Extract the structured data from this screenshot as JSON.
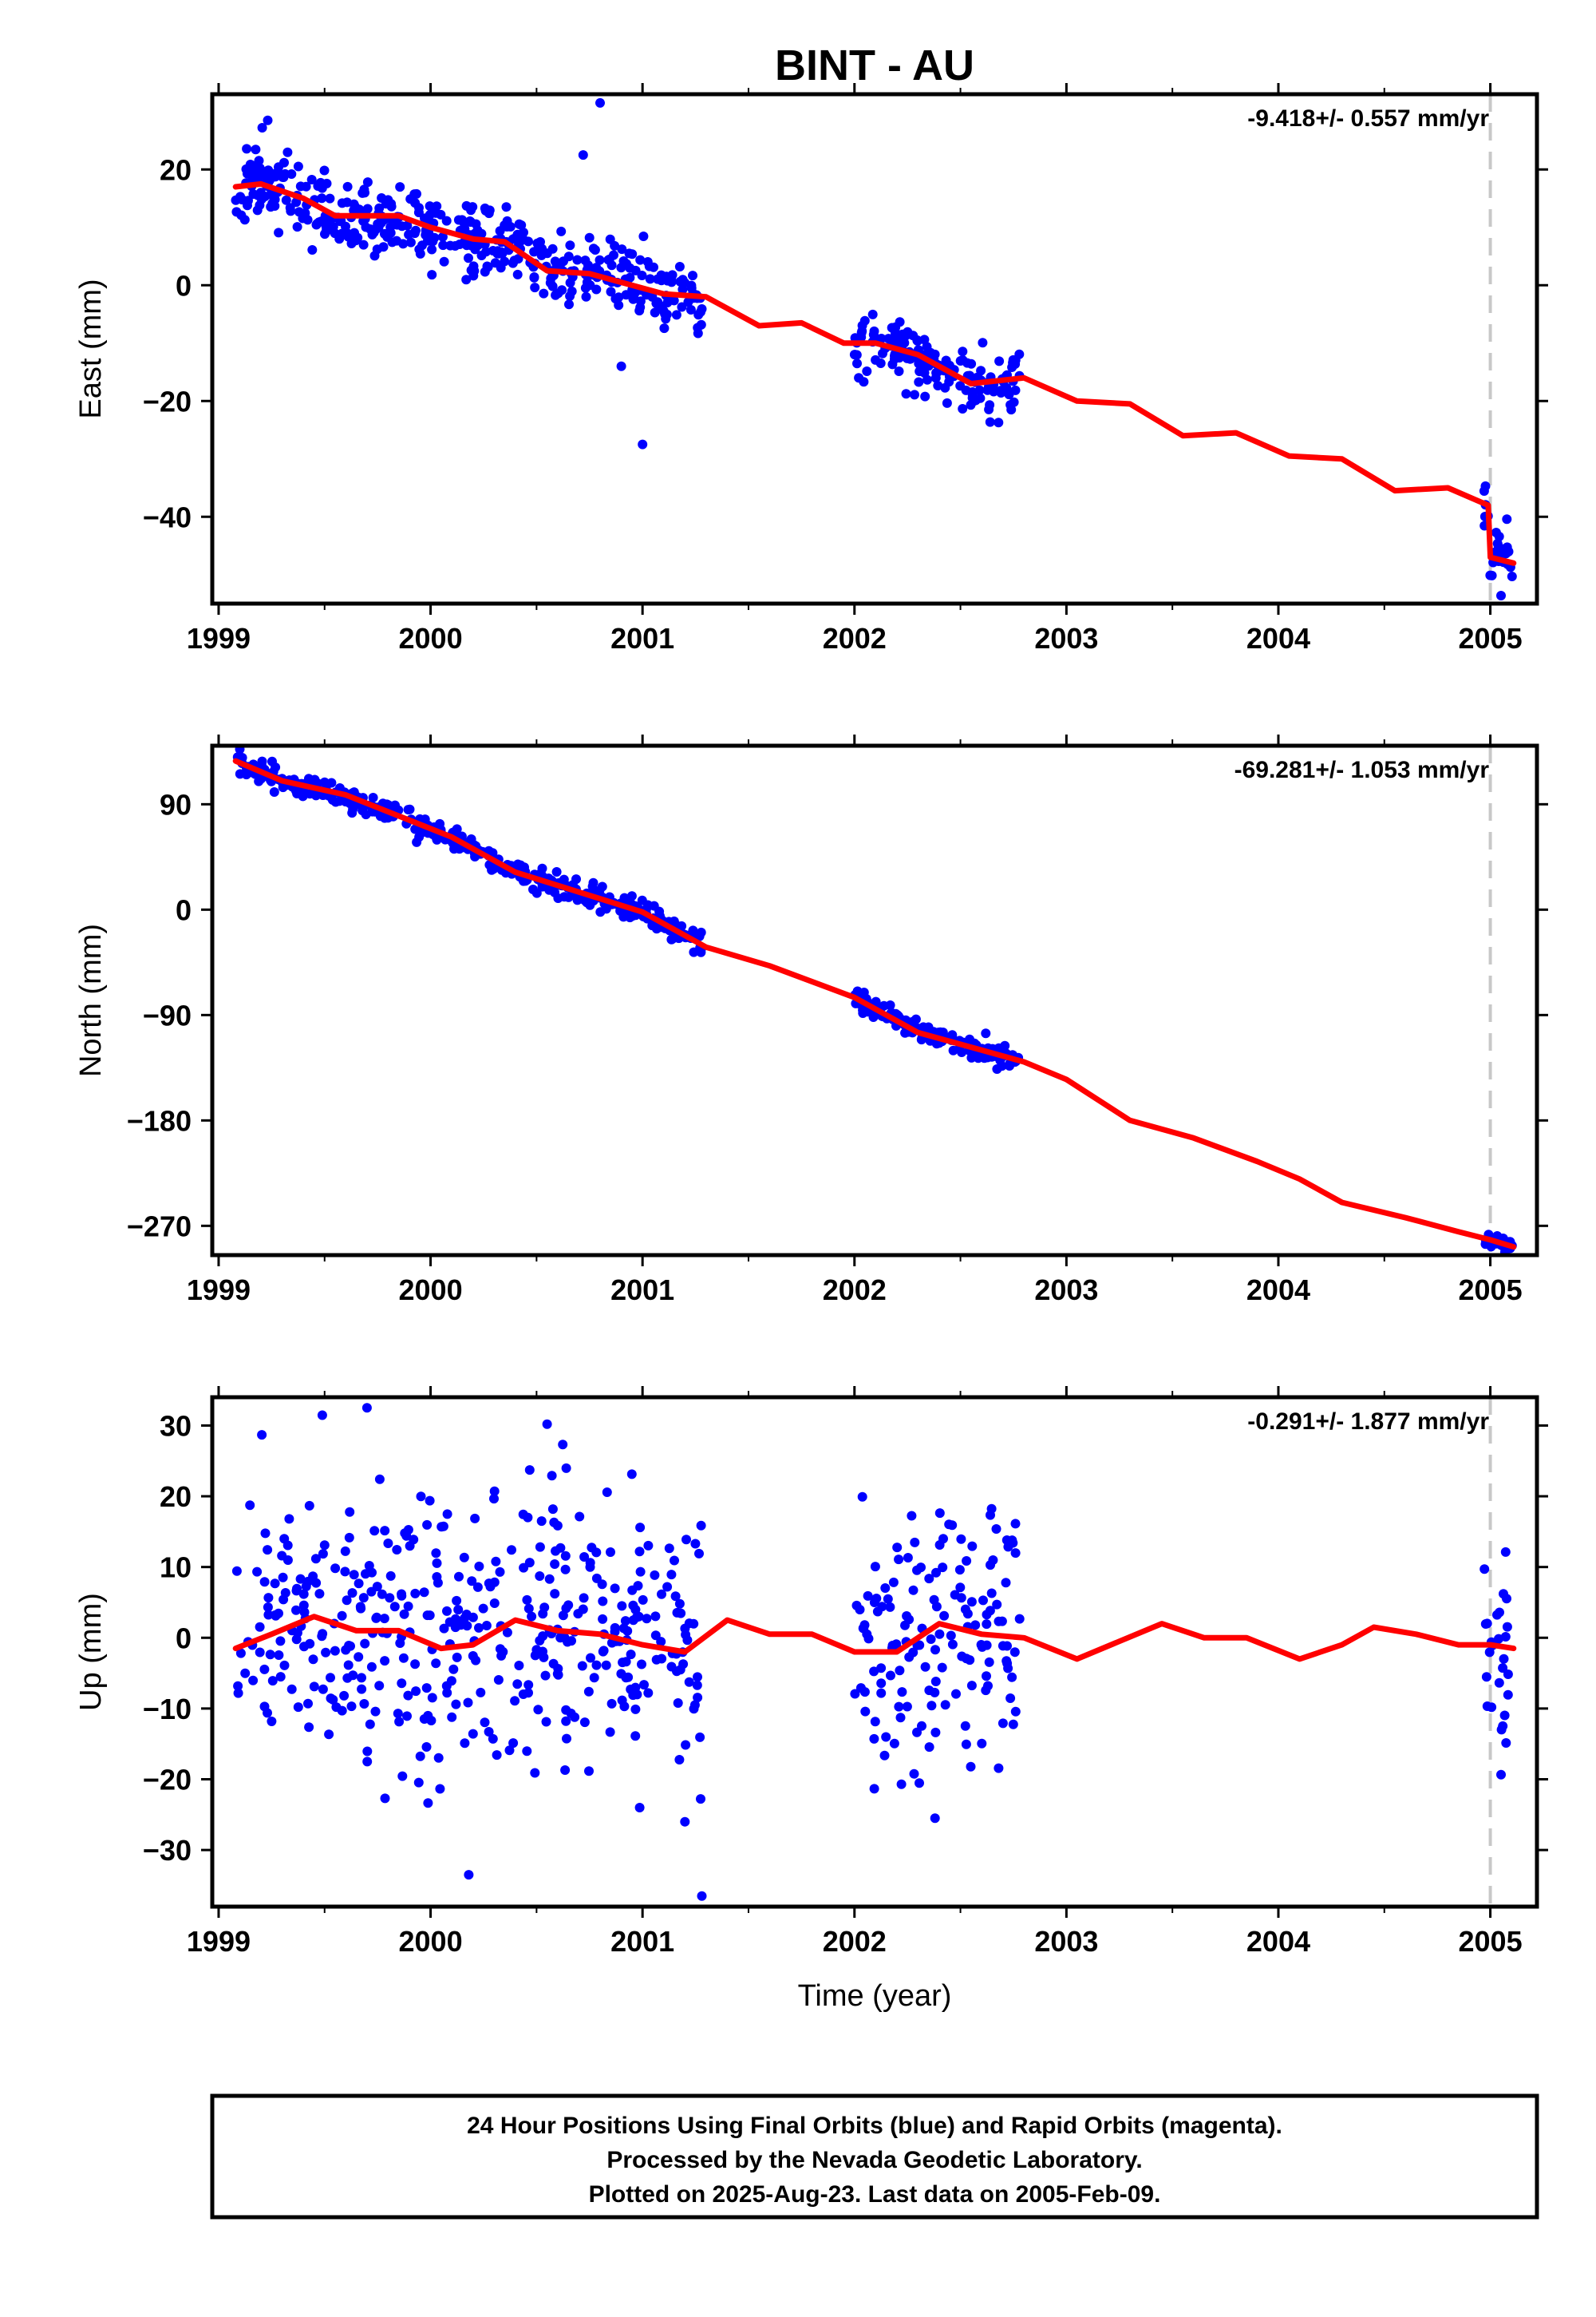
{
  "title": "BINT - AU",
  "xlabel": "Time (year)",
  "footer_lines": [
    "24 Hour Positions Using Final Orbits (blue) and Rapid Orbits (magenta).",
    "Processed by the Nevada Geodetic Laboratory.",
    "Plotted on 2025-Aug-23. Last data on 2005-Feb-09."
  ],
  "colors": {
    "points": "#0000ff",
    "model": "#ff0000",
    "marker_line": "#c8c8c8",
    "frame": "#000000"
  },
  "chart_data": [
    {
      "type": "scatter",
      "name": "east",
      "ylabel": "East (mm)",
      "rate_label": "-9.418+/- 0.557 mm/yr",
      "xlim": [
        1998.97,
        2005.22
      ],
      "ylim": [
        -55,
        33
      ],
      "xticks": [
        1999,
        2000,
        2001,
        2002,
        2003,
        2004,
        2005
      ],
      "xticklabels": [
        "1999",
        "2000",
        "2001",
        "2002",
        "2003",
        "2004",
        "2005"
      ],
      "yticks": [
        -40,
        -20,
        0,
        20
      ],
      "yticklabels": [
        "−40",
        "−20",
        "0",
        "20"
      ],
      "vline_x": 2005.0,
      "data_segments": [
        [
          1999.08,
          2001.28
        ],
        [
          2002.0,
          2002.78
        ],
        [
          2004.97,
          2005.11
        ]
      ],
      "model": {
        "x": [
          1999.08,
          1999.2,
          1999.4,
          1999.55,
          1999.7,
          1999.85,
          2000.0,
          2000.2,
          2000.35,
          2000.55,
          2000.75,
          2000.95,
          2001.1,
          2001.3,
          2001.55,
          2001.75,
          2001.95,
          2002.1,
          2002.3,
          2002.55,
          2002.8,
          2003.05,
          2003.3,
          2003.55,
          2003.8,
          2004.05,
          2004.3,
          2004.55,
          2004.8,
          2004.99,
          2005.0,
          2005.11
        ],
        "y": [
          17,
          17.5,
          15,
          12,
          12,
          12,
          10,
          8,
          7.5,
          2.5,
          2,
          0,
          -1.5,
          -2,
          -7,
          -6.5,
          -10,
          -10,
          -12,
          -17,
          -16,
          -20,
          -20.5,
          -26,
          -25.5,
          -29.5,
          -30,
          -35.5,
          -35,
          -38,
          -47,
          -48
        ]
      },
      "points": {
        "noise": 3.2,
        "count": 640,
        "seed": 11
      },
      "outliers": [
        [
          2000.8,
          31.5
        ],
        [
          2000.72,
          22.5
        ],
        [
          2001.0,
          -27.5
        ],
        [
          2000.9,
          -14
        ]
      ]
    },
    {
      "type": "scatter",
      "name": "north",
      "ylabel": "North (mm)",
      "rate_label": "-69.281+/- 1.053 mm/yr",
      "xlim": [
        1998.97,
        2005.22
      ],
      "ylim": [
        -295,
        140
      ],
      "xticks": [
        1999,
        2000,
        2001,
        2002,
        2003,
        2004,
        2005
      ],
      "xticklabels": [
        "1999",
        "2000",
        "2001",
        "2002",
        "2003",
        "2004",
        "2005"
      ],
      "yticks": [
        -270,
        -180,
        -90,
        0,
        90
      ],
      "yticklabels": [
        "−270",
        "−180",
        "−90",
        "0",
        "90"
      ],
      "vline_x": 2005.0,
      "data_segments": [
        [
          1999.08,
          2001.28
        ],
        [
          2002.0,
          2002.78
        ],
        [
          2004.97,
          2005.11
        ]
      ],
      "model": {
        "x": [
          1999.08,
          1999.3,
          1999.6,
          1999.85,
          2000.1,
          2000.4,
          2000.7,
          2001.0,
          2001.3,
          2001.6,
          2002.0,
          2002.3,
          2002.6,
          2002.8,
          2003.0,
          2003.3,
          2003.6,
          2003.9,
          2004.1,
          2004.3,
          2004.6,
          2004.85,
          2005.0,
          2005.11
        ],
        "y": [
          127,
          110,
          98,
          80,
          62,
          32,
          15,
          -2,
          -32,
          -48,
          -75,
          -105,
          -120,
          -130,
          -145,
          -180,
          -195,
          -215,
          -230,
          -250,
          -263,
          -275,
          -282,
          -288
        ]
      },
      "points": {
        "noise": 4.5,
        "count": 620,
        "seed": 23
      },
      "outliers": [
        [
          1999.1,
          137
        ]
      ]
    },
    {
      "type": "scatter",
      "name": "up",
      "ylabel": "Up (mm)",
      "rate_label": "-0.291+/- 1.877 mm/yr",
      "xlim": [
        1998.97,
        2005.22
      ],
      "ylim": [
        -38,
        34
      ],
      "xticks": [
        1999,
        2000,
        2001,
        2002,
        2003,
        2004,
        2005
      ],
      "xticklabels": [
        "1999",
        "2000",
        "2001",
        "2002",
        "2003",
        "2004",
        "2005"
      ],
      "yticks": [
        -30,
        -20,
        -10,
        0,
        10,
        20,
        30
      ],
      "yticklabels": [
        "−30",
        "−20",
        "−10",
        "0",
        "10",
        "20",
        "30"
      ],
      "vline_x": 2005.0,
      "data_segments": [
        [
          1999.08,
          2001.28
        ],
        [
          2002.0,
          2002.78
        ],
        [
          2004.97,
          2005.11
        ]
      ],
      "model": {
        "x": [
          1999.08,
          1999.25,
          1999.45,
          1999.65,
          1999.85,
          2000.05,
          2000.2,
          2000.4,
          2000.6,
          2000.8,
          2001.0,
          2001.2,
          2001.4,
          2001.6,
          2001.8,
          2002.0,
          2002.2,
          2002.4,
          2002.6,
          2002.8,
          2003.05,
          2003.25,
          2003.45,
          2003.65,
          2003.85,
          2004.1,
          2004.3,
          2004.45,
          2004.65,
          2004.85,
          2005.0,
          2005.11
        ],
        "y": [
          -1.5,
          0.5,
          3,
          1,
          1,
          -1.5,
          -1,
          2.5,
          1,
          0.5,
          -1,
          -2,
          2.5,
          0.5,
          0.5,
          -2,
          -2,
          2,
          0.5,
          0,
          -3,
          -0.5,
          2,
          0,
          0,
          -3,
          -1,
          1.5,
          0.5,
          -1,
          -1,
          -1.5
        ]
      },
      "points": {
        "noise": 9.5,
        "count": 600,
        "seed": 37
      },
      "outliers": [
        [
          1999.7,
          32.5
        ],
        [
          2000.55,
          30.2
        ],
        [
          2000.18,
          -33.5
        ],
        [
          2001.28,
          -36.5
        ],
        [
          2002.38,
          -25.5
        ],
        [
          2001.2,
          -26
        ]
      ]
    }
  ]
}
